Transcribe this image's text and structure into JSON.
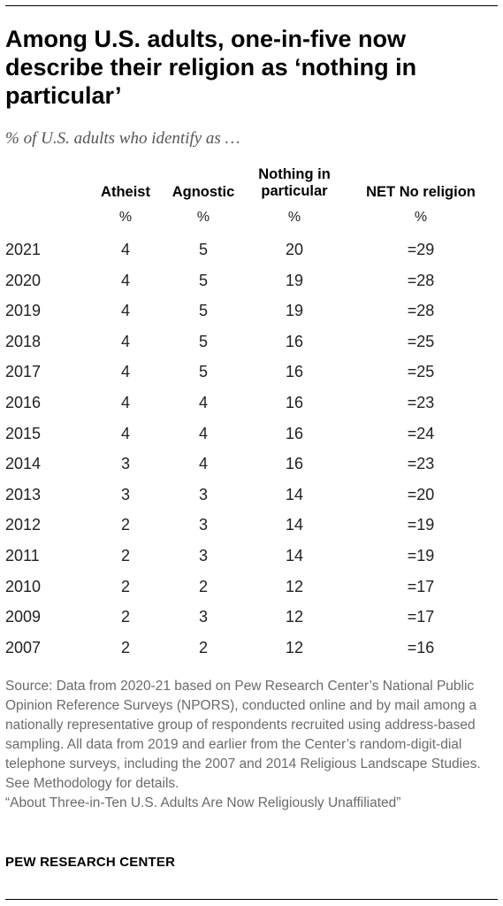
{
  "title": "Among U.S. adults, one-in-five now describe their religion as ‘nothing in particular’",
  "subtitle": "% of U.S. adults who identify as …",
  "columns": {
    "atheist": "Atheist",
    "agnostic": "Agnostic",
    "nothing_line1": "Nothing in",
    "nothing_line2": "particular",
    "net": "NET No religion",
    "unit": "%"
  },
  "chart_data": {
    "type": "table",
    "columns": [
      "Atheist",
      "Agnostic",
      "Nothing in particular",
      "NET No religion"
    ],
    "rows": [
      {
        "year": "2021",
        "atheist": "4",
        "agnostic": "5",
        "nothing": "20",
        "net": "=29"
      },
      {
        "year": "2020",
        "atheist": "4",
        "agnostic": "5",
        "nothing": "19",
        "net": "=28"
      },
      {
        "year": "2019",
        "atheist": "4",
        "agnostic": "5",
        "nothing": "19",
        "net": "=28"
      },
      {
        "year": "2018",
        "atheist": "4",
        "agnostic": "5",
        "nothing": "16",
        "net": "=25"
      },
      {
        "year": "2017",
        "atheist": "4",
        "agnostic": "5",
        "nothing": "16",
        "net": "=25"
      },
      {
        "year": "2016",
        "atheist": "4",
        "agnostic": "4",
        "nothing": "16",
        "net": "=23"
      },
      {
        "year": "2015",
        "atheist": "4",
        "agnostic": "4",
        "nothing": "16",
        "net": "=24"
      },
      {
        "year": "2014",
        "atheist": "3",
        "agnostic": "4",
        "nothing": "16",
        "net": "=23"
      },
      {
        "year": "2013",
        "atheist": "3",
        "agnostic": "3",
        "nothing": "14",
        "net": "=20"
      },
      {
        "year": "2012",
        "atheist": "2",
        "agnostic": "3",
        "nothing": "14",
        "net": "=19"
      },
      {
        "year": "2011",
        "atheist": "2",
        "agnostic": "3",
        "nothing": "14",
        "net": "=19"
      },
      {
        "year": "2010",
        "atheist": "2",
        "agnostic": "2",
        "nothing": "12",
        "net": "=17"
      },
      {
        "year": "2009",
        "atheist": "2",
        "agnostic": "3",
        "nothing": "12",
        "net": "=17"
      },
      {
        "year": "2007",
        "atheist": "2",
        "agnostic": "2",
        "nothing": "12",
        "net": "=16"
      }
    ]
  },
  "notes": {
    "source": "Source: Data from 2020-21 based on Pew Research Center’s National Public Opinion Reference Surveys (NPORS), conducted online and by mail among a nationally representative group of respondents recruited using address-based sampling. All data from 2019 and earlier from the Center’s random-digit-dial telephone surveys, including the 2007 and 2014 Religious Landscape Studies. See Methodology for details.",
    "report": "“About Three-in-Ten U.S. Adults Are Now Religiously Unaffiliated”"
  },
  "brand": "PEW RESEARCH CENTER"
}
